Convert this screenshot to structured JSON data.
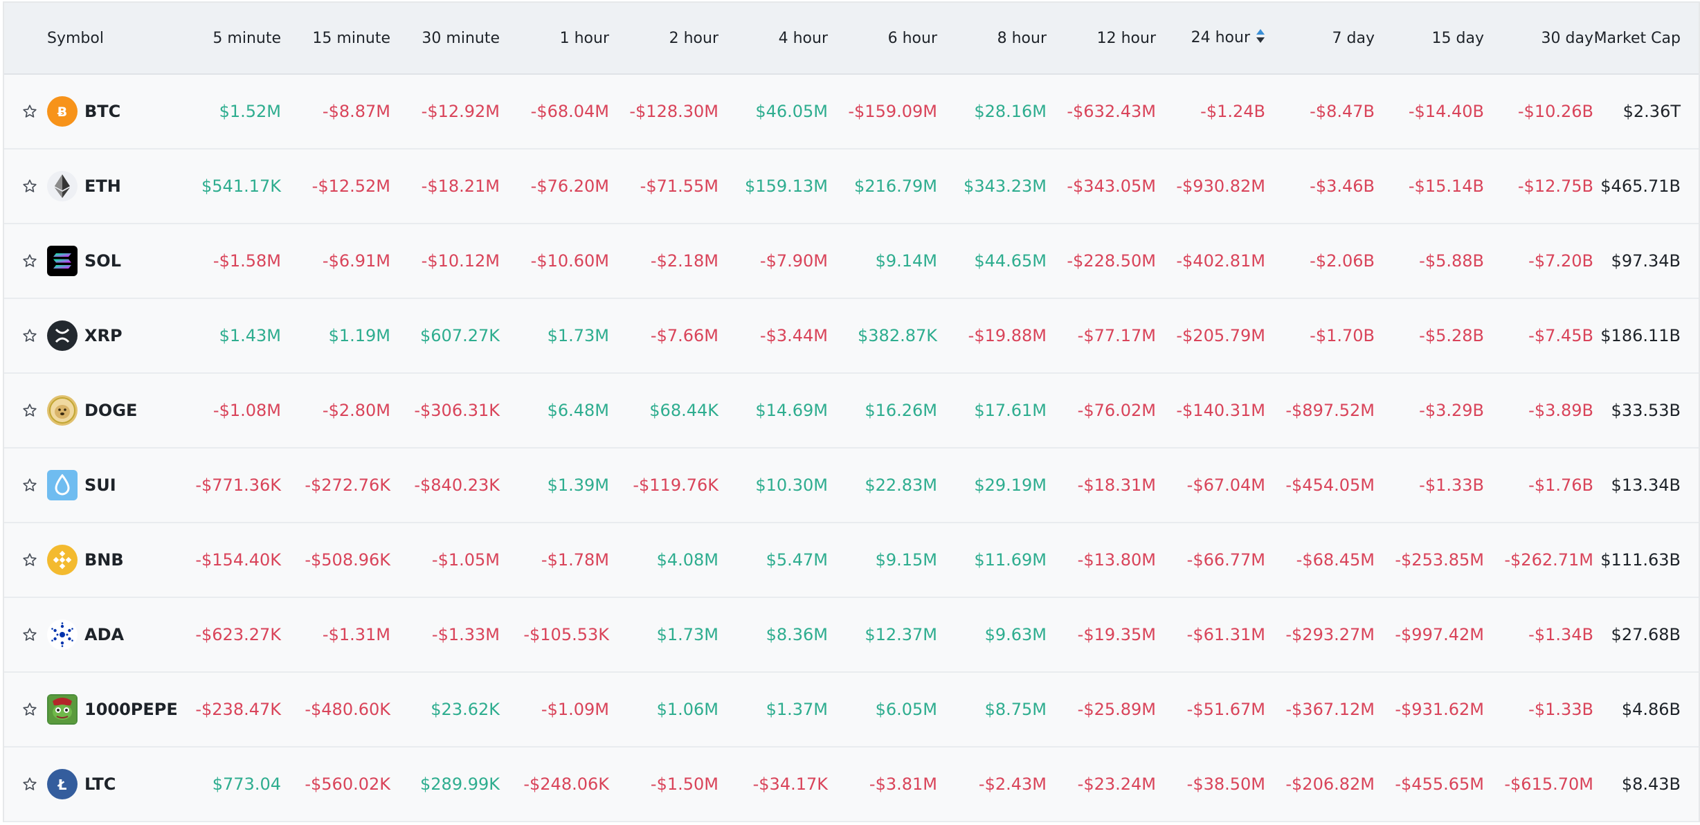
{
  "columns": [
    "Symbol",
    "5 minute",
    "15 minute",
    "30 minute",
    "1 hour",
    "2 hour",
    "4 hour",
    "6 hour",
    "8 hour",
    "12 hour",
    "24 hour",
    "7 day",
    "15 day",
    "30 day",
    "Market Cap"
  ],
  "sort_column": "24 hour",
  "colors": {
    "positive": "#2ead8f",
    "negative": "#d9445a"
  },
  "rows": [
    {
      "symbol": "BTC",
      "icon": "btc-icon",
      "values": [
        "$1.52M",
        "-$8.87M",
        "-$12.92M",
        "-$68.04M",
        "-$128.30M",
        "$46.05M",
        "-$159.09M",
        "$28.16M",
        "-$632.43M",
        "-$1.24B",
        "-$8.47B",
        "-$14.40B",
        "-$10.26B"
      ],
      "market_cap": "$2.36T"
    },
    {
      "symbol": "ETH",
      "icon": "eth-icon",
      "values": [
        "$541.17K",
        "-$12.52M",
        "-$18.21M",
        "-$76.20M",
        "-$71.55M",
        "$159.13M",
        "$216.79M",
        "$343.23M",
        "-$343.05M",
        "-$930.82M",
        "-$3.46B",
        "-$15.14B",
        "-$12.75B"
      ],
      "market_cap": "$465.71B"
    },
    {
      "symbol": "SOL",
      "icon": "sol-icon",
      "values": [
        "-$1.58M",
        "-$6.91M",
        "-$10.12M",
        "-$10.60M",
        "-$2.18M",
        "-$7.90M",
        "$9.14M",
        "$44.65M",
        "-$228.50M",
        "-$402.81M",
        "-$2.06B",
        "-$5.88B",
        "-$7.20B"
      ],
      "market_cap": "$97.34B"
    },
    {
      "symbol": "XRP",
      "icon": "xrp-icon",
      "values": [
        "$1.43M",
        "$1.19M",
        "$607.27K",
        "$1.73M",
        "-$7.66M",
        "-$3.44M",
        "$382.87K",
        "-$19.88M",
        "-$77.17M",
        "-$205.79M",
        "-$1.70B",
        "-$5.28B",
        "-$7.45B"
      ],
      "market_cap": "$186.11B"
    },
    {
      "symbol": "DOGE",
      "icon": "doge-icon",
      "values": [
        "-$1.08M",
        "-$2.80M",
        "-$306.31K",
        "$6.48M",
        "$68.44K",
        "$14.69M",
        "$16.26M",
        "$17.61M",
        "-$76.02M",
        "-$140.31M",
        "-$897.52M",
        "-$3.29B",
        "-$3.89B"
      ],
      "market_cap": "$33.53B"
    },
    {
      "symbol": "SUI",
      "icon": "sui-icon",
      "values": [
        "-$771.36K",
        "-$272.76K",
        "-$840.23K",
        "$1.39M",
        "-$119.76K",
        "$10.30M",
        "$22.83M",
        "$29.19M",
        "-$18.31M",
        "-$67.04M",
        "-$454.05M",
        "-$1.33B",
        "-$1.76B"
      ],
      "market_cap": "$13.34B"
    },
    {
      "symbol": "BNB",
      "icon": "bnb-icon",
      "values": [
        "-$154.40K",
        "-$508.96K",
        "-$1.05M",
        "-$1.78M",
        "$4.08M",
        "$5.47M",
        "$9.15M",
        "$11.69M",
        "-$13.80M",
        "-$66.77M",
        "-$68.45M",
        "-$253.85M",
        "-$262.71M"
      ],
      "market_cap": "$111.63B"
    },
    {
      "symbol": "ADA",
      "icon": "ada-icon",
      "values": [
        "-$623.27K",
        "-$1.31M",
        "-$1.33M",
        "-$105.53K",
        "$1.73M",
        "$8.36M",
        "$12.37M",
        "$9.63M",
        "-$19.35M",
        "-$61.31M",
        "-$293.27M",
        "-$997.42M",
        "-$1.34B"
      ],
      "market_cap": "$27.68B"
    },
    {
      "symbol": "1000PEPE",
      "icon": "pepe-icon",
      "values": [
        "-$238.47K",
        "-$480.60K",
        "$23.62K",
        "-$1.09M",
        "$1.06M",
        "$1.37M",
        "$6.05M",
        "$8.75M",
        "-$25.89M",
        "-$51.67M",
        "-$367.12M",
        "-$931.62M",
        "-$1.33B"
      ],
      "market_cap": "$4.86B"
    },
    {
      "symbol": "LTC",
      "icon": "ltc-icon",
      "values": [
        "$773.04",
        "-$560.02K",
        "$289.99K",
        "-$248.06K",
        "-$1.50M",
        "-$34.17K",
        "-$3.81M",
        "-$2.43M",
        "-$23.24M",
        "-$38.50M",
        "-$206.82M",
        "-$455.65M",
        "-$615.70M"
      ],
      "market_cap": "$8.43B"
    }
  ]
}
